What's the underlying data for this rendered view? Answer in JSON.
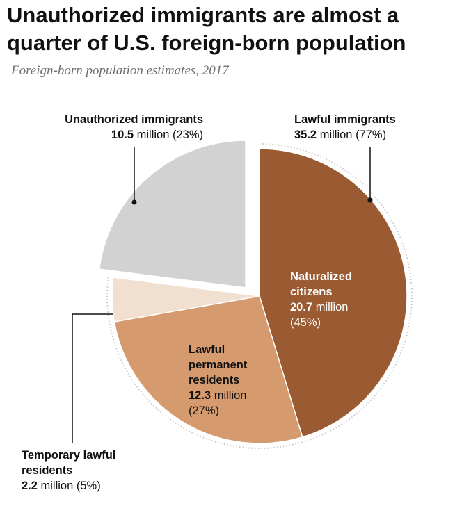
{
  "title": "Unauthorized immigrants are almost a quarter of U.S. foreign-born population",
  "subtitle": "Foreign-born population estimates, 2017",
  "labels": {
    "unauthorized": {
      "name": "Unauthorized immigrants",
      "value": "10.5",
      "unit": " million",
      "pct": " (23%)"
    },
    "lawful": {
      "name": "Lawful immigrants",
      "value": "35.2",
      "unit": " million",
      "pct": " (77%)"
    },
    "naturalized": {
      "name_line1": "Naturalized",
      "name_line2": "citizens",
      "value": "20.7",
      "unit": " million",
      "pct": "(45%)"
    },
    "lpr": {
      "name_line1": "Lawful",
      "name_line2": "permanent",
      "name_line3": "residents",
      "value": "12.3",
      "unit": " million",
      "pct": "(27%)"
    },
    "temporary": {
      "name_line1": "Temporary lawful",
      "name_line2": "residents",
      "value": "2.2",
      "unit": " million",
      "pct": " (5%)"
    }
  },
  "colors": {
    "unauthorized": "#d2d2d2",
    "naturalized": "#9a5b32",
    "lpr": "#d59a6e",
    "temporary": "#f1dfd0",
    "leader": "#111111",
    "dotted_ring": "#c8c8c8"
  },
  "chart_data": {
    "type": "pie",
    "unit": "million",
    "categories": [
      "Naturalized citizens",
      "Lawful permanent residents",
      "Temporary lawful residents",
      "Unauthorized immigrants"
    ],
    "values": [
      20.7,
      12.3,
      2.2,
      10.5
    ],
    "percentages": [
      45,
      27,
      5,
      23
    ],
    "groups": [
      {
        "name": "Lawful immigrants",
        "value": 35.2,
        "percentage": 77,
        "members": [
          "Naturalized citizens",
          "Lawful permanent residents",
          "Temporary lawful residents"
        ]
      },
      {
        "name": "Unauthorized immigrants",
        "value": 10.5,
        "percentage": 23,
        "members": [
          "Unauthorized immigrants"
        ]
      }
    ],
    "exploded": "Unauthorized immigrants",
    "title": "Unauthorized immigrants are almost a quarter of U.S. foreign-born population",
    "subtitle": "Foreign-born population estimates, 2017"
  }
}
